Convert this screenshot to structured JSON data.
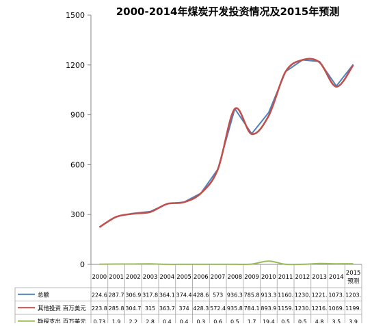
{
  "chart_data": {
    "type": "line",
    "title": "2000-2014年煤炭开发投资情况及2015年预测",
    "categories": [
      "2000",
      "2001",
      "2002",
      "2003",
      "2004",
      "2005",
      "2006",
      "2007",
      "2008",
      "2009",
      "2010",
      "2011",
      "2012",
      "2013",
      "2014",
      "2015预测"
    ],
    "category_lines": [
      [
        "2000"
      ],
      [
        "2001"
      ],
      [
        "2002"
      ],
      [
        "2003"
      ],
      [
        "2004"
      ],
      [
        "2005"
      ],
      [
        "2006"
      ],
      [
        "2007"
      ],
      [
        "2008"
      ],
      [
        "2009"
      ],
      [
        "2010"
      ],
      [
        "2011"
      ],
      [
        "2012"
      ],
      [
        "2013"
      ],
      [
        "2014"
      ],
      [
        "2015",
        "预测"
      ]
    ],
    "ylim": [
      0,
      1500
    ],
    "yticks": [
      0,
      300,
      600,
      900,
      1200,
      1500
    ],
    "grid": false,
    "legend": "data-table",
    "series": [
      {
        "name": "总额",
        "color": "#4f81bd",
        "values": [
          224.6,
          287.7,
          306.9,
          317.8,
          364.1,
          374.4,
          428.6,
          573,
          936.3,
          785.8,
          913.3,
          1160,
          1230,
          1221,
          1073,
          1203
        ],
        "table_values": [
          "224.6",
          "287.7",
          "306.9",
          "317.8",
          "364.1",
          "374.4",
          "428.6",
          "573",
          "936.3",
          "785.8",
          "913.3",
          "1160.",
          "1230.",
          "1221.",
          "1073.",
          "1203."
        ]
      },
      {
        "name": "其他投资 百万美元",
        "color": "#c0504d",
        "values": [
          223.8,
          285.8,
          304.7,
          315,
          363.7,
          374,
          428.3,
          572.4,
          935.8,
          784.1,
          893.9,
          1159,
          1230,
          1216,
          1069,
          1199
        ],
        "table_values": [
          "223.8",
          "285.8",
          "304.7",
          "315",
          "363.7",
          "374",
          "428.3",
          "572.4",
          "935.8",
          "784.1",
          "893.9",
          "1159.",
          "1230.",
          "1216.",
          "1069.",
          "1199."
        ]
      },
      {
        "name": "勘探支出 百万美元",
        "color": "#9bbb59",
        "values": [
          0.73,
          1.9,
          2.2,
          2.8,
          0.4,
          0.4,
          0.3,
          0.6,
          0.5,
          1.7,
          19.4,
          0.5,
          0.5,
          4.8,
          3.5,
          3.9
        ],
        "table_values": [
          "0.73",
          "1.9",
          "2.2",
          "2.8",
          "0.4",
          "0.4",
          "0.3",
          "0.6",
          "0.5",
          "1.7",
          "19.4",
          "0.5",
          "0.5",
          "4.8",
          "3.5",
          "3.9"
        ]
      }
    ]
  }
}
